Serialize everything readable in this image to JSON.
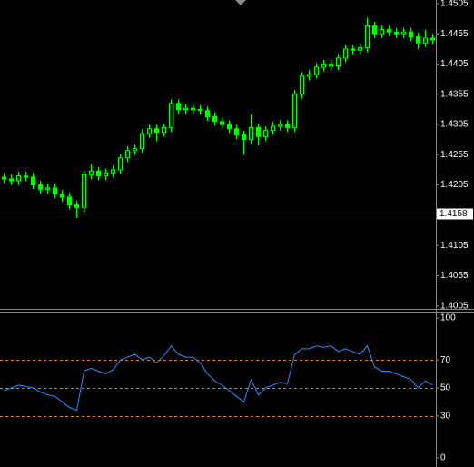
{
  "chart_data": [
    {
      "type": "candlestick",
      "color": "#00ff00",
      "open": [
        1.4218,
        1.4215,
        1.4212,
        1.422,
        1.4218,
        1.4205,
        1.4198,
        1.42,
        1.419,
        1.4185,
        1.4172,
        1.4168,
        1.4222,
        1.4228,
        1.422,
        1.4225,
        1.423,
        1.425,
        1.4262,
        1.4265,
        1.429,
        1.4298,
        1.4292,
        1.43,
        1.434,
        1.433,
        1.4332,
        1.433,
        1.4328,
        1.4318,
        1.431,
        1.4305,
        1.4298,
        1.4288,
        1.428,
        1.43,
        1.4285,
        1.4295,
        1.4302,
        1.4305,
        1.43,
        1.4355,
        1.4385,
        1.4388,
        1.44,
        1.4405,
        1.4402,
        1.4415,
        1.443,
        1.4428,
        1.4432,
        1.4468,
        1.4455,
        1.4462,
        1.4458,
        1.4455,
        1.4458,
        1.445,
        1.444,
        1.4448
      ],
      "high": [
        1.4225,
        1.4222,
        1.4227,
        1.4227,
        1.4225,
        1.4212,
        1.4207,
        1.4207,
        1.4197,
        1.4192,
        1.4179,
        1.4229,
        1.424,
        1.4235,
        1.4232,
        1.4237,
        1.4257,
        1.4269,
        1.4272,
        1.4297,
        1.4305,
        1.4305,
        1.4307,
        1.4347,
        1.4347,
        1.4339,
        1.4339,
        1.4337,
        1.4335,
        1.4325,
        1.4317,
        1.4312,
        1.4305,
        1.4295,
        1.4322,
        1.4307,
        1.4302,
        1.4309,
        1.4312,
        1.4312,
        1.4362,
        1.4392,
        1.4395,
        1.4407,
        1.4412,
        1.4412,
        1.4422,
        1.4437,
        1.4437,
        1.4439,
        1.4482,
        1.4475,
        1.4469,
        1.4469,
        1.4465,
        1.4465,
        1.4465,
        1.4457,
        1.4462,
        1.4455
      ],
      "low": [
        1.4208,
        1.4205,
        1.4205,
        1.4211,
        1.4198,
        1.4191,
        1.4191,
        1.4183,
        1.4178,
        1.4165,
        1.415,
        1.4161,
        1.4215,
        1.4213,
        1.4213,
        1.4218,
        1.4223,
        1.4243,
        1.4255,
        1.4258,
        1.4283,
        1.4278,
        1.4285,
        1.4293,
        1.4323,
        1.4323,
        1.4323,
        1.4321,
        1.4311,
        1.4303,
        1.4298,
        1.4291,
        1.4281,
        1.4255,
        1.4273,
        1.427,
        1.4278,
        1.4288,
        1.4295,
        1.4293,
        1.4293,
        1.4348,
        1.4378,
        1.4381,
        1.4393,
        1.4395,
        1.4395,
        1.4408,
        1.4421,
        1.4421,
        1.4425,
        1.4448,
        1.4448,
        1.4451,
        1.4448,
        1.4448,
        1.4443,
        1.443,
        1.4433,
        1.4438
      ],
      "close": [
        1.4215,
        1.4212,
        1.422,
        1.4218,
        1.4205,
        1.4198,
        1.42,
        1.419,
        1.4185,
        1.4172,
        1.4168,
        1.4222,
        1.4228,
        1.422,
        1.4225,
        1.423,
        1.425,
        1.4262,
        1.4265,
        1.429,
        1.4298,
        1.4292,
        1.43,
        1.434,
        1.433,
        1.4332,
        1.433,
        1.4328,
        1.4318,
        1.431,
        1.4305,
        1.4298,
        1.4288,
        1.428,
        1.43,
        1.4285,
        1.4295,
        1.4302,
        1.4305,
        1.43,
        1.4355,
        1.4385,
        1.4388,
        1.44,
        1.4405,
        1.4402,
        1.4415,
        1.443,
        1.4428,
        1.4432,
        1.4468,
        1.4455,
        1.4462,
        1.4458,
        1.4455,
        1.4458,
        1.445,
        1.444,
        1.4448,
        1.4445
      ],
      "ylim": [
        1.4,
        1.4511
      ],
      "yticks": [
        1.4505,
        1.4455,
        1.4405,
        1.4355,
        1.4305,
        1.4255,
        1.4205,
        1.4105,
        1.4055,
        1.4005
      ],
      "price_line": 1.4158,
      "price_line_color": "#6a8caf"
    },
    {
      "type": "line",
      "color": "#1e90ff",
      "values": [
        48,
        50,
        52,
        51,
        50,
        47,
        45,
        44,
        40,
        36,
        34,
        62,
        64,
        62,
        60,
        63,
        70,
        72,
        74,
        70,
        72,
        68,
        73,
        80,
        74,
        72,
        72,
        68,
        60,
        55,
        52,
        48,
        44,
        40,
        56,
        45,
        50,
        52,
        54,
        53,
        74,
        78,
        78,
        80,
        79,
        80,
        76,
        78,
        76,
        74,
        80,
        65,
        62,
        62,
        60,
        58,
        56,
        50,
        55,
        52
      ],
      "ylim": [
        -6.5,
        104.5
      ],
      "yticks": [
        100,
        70,
        50,
        30,
        0
      ],
      "levels": [
        70,
        50,
        30
      ],
      "level_color": "#c8862a"
    }
  ]
}
